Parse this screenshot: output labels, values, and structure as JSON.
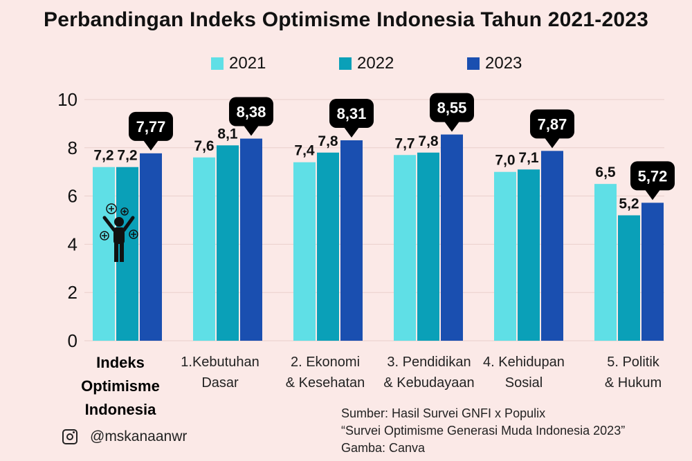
{
  "title": "Perbandingan Indeks Optimisme Indonesia Tahun 2021-2023",
  "colors": {
    "2021": "#5fdfe6",
    "2022": "#0aa0b8",
    "2023": "#1a4fb0",
    "callout": "#000000"
  },
  "chart_data": {
    "type": "bar",
    "categories": [
      [
        "Indeks",
        "Optimisme",
        "Indonesia"
      ],
      [
        "1.Kebutuhan",
        "Dasar"
      ],
      [
        "2. Ekonomi",
        "& Kesehatan"
      ],
      [
        "3. Pendidikan",
        "& Kebudayaan"
      ],
      [
        "4. Kehidupan",
        "Sosial"
      ],
      [
        "5. Politik",
        "& Hukum"
      ]
    ],
    "series": [
      {
        "name": "2021",
        "values": [
          7.2,
          7.6,
          7.4,
          7.7,
          7.0,
          6.5
        ],
        "labels": [
          "7,2",
          "7,6",
          "7,4",
          "7,7",
          "7,0",
          "6,5"
        ]
      },
      {
        "name": "2022",
        "values": [
          7.2,
          8.1,
          7.8,
          7.8,
          7.1,
          5.2
        ],
        "labels": [
          "7,2",
          "8,1",
          "7,8",
          "7,8",
          "7,1",
          "5,2"
        ]
      },
      {
        "name": "2023",
        "values": [
          7.77,
          8.38,
          8.31,
          8.55,
          7.87,
          5.72
        ],
        "labels": [
          "7,77",
          "8,38",
          "8,31",
          "8,55",
          "7,87",
          "5,72"
        ]
      }
    ],
    "yticks": [
      "0",
      "2",
      "4",
      "6",
      "8",
      "10"
    ],
    "ylim": [
      0,
      10
    ],
    "grid": true,
    "legend_position": "top-center"
  },
  "source": {
    "line1": "Sumber: Hasil Survei GNFI x Populix",
    "line2": "“Survei Optimisme Generasi Muda Indonesia 2023”",
    "line3": "Gamba: Canva"
  },
  "handle": "@mskanaanwr"
}
